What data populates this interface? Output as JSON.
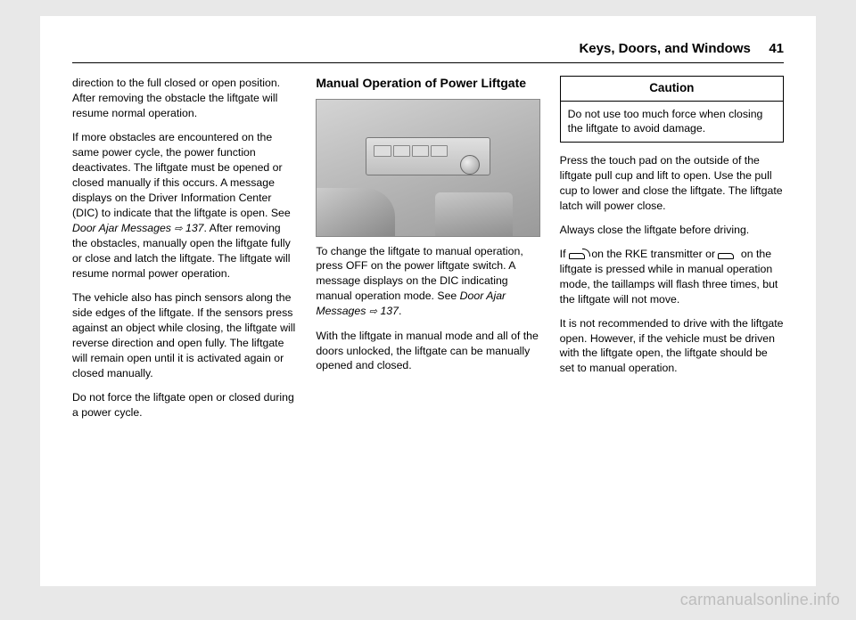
{
  "header": {
    "title": "Keys, Doors, and Windows",
    "page": "41"
  },
  "col1": {
    "p1": "direction to the full closed or open position. After removing the obstacle the liftgate will resume normal operation.",
    "p2a": "If more obstacles are encountered on the same power cycle, the power function deactivates. The liftgate must be opened or closed manually if this occurs. A message displays on the Driver Information Center (DIC) to indicate that the liftgate is open. See ",
    "p2_link": "Door Ajar Messages ",
    "p2_ref": "137",
    "p2b": ". After removing the obstacles, manually open the liftgate fully or close and latch the liftgate. The liftgate will resume normal power operation.",
    "p3": "The vehicle also has pinch sensors along the side edges of the liftgate. If the sensors press against an object while closing, the liftgate will reverse direction and open fully. The liftgate will remain open until it is activated again or closed manually.",
    "p4": "Do not force the liftgate open or closed during a power cycle."
  },
  "col2": {
    "heading": "Manual Operation of Power Liftgate",
    "p1a": "To change the liftgate to manual operation, press OFF on the power liftgate switch. A message displays on the DIC indicating manual operation mode. See ",
    "p1_link": "Door Ajar Messages ",
    "p1_ref": "137",
    "p1b": ".",
    "p2": "With the liftgate in manual mode and all of the doors unlocked, the liftgate can be manually opened and closed."
  },
  "col3": {
    "caution_title": "Caution",
    "caution_body": "Do not use too much force when closing the liftgate to avoid damage.",
    "p1": "Press the touch pad on the outside of the liftgate pull cup and lift to open. Use the pull cup to lower and close the liftgate. The liftgate latch will power close.",
    "p2": "Always close the liftgate before driving.",
    "p3a": "If ",
    "p3b": " on the RKE transmitter or ",
    "p3c": " on the liftgate is pressed while in manual operation mode, the taillamps will flash three times, but the liftgate will not move.",
    "p4": "It is not recommended to drive with the liftgate open. However, if the vehicle must be driven with the liftgate open, the liftgate should be set to manual operation."
  },
  "watermark": "carmanualsonline.info"
}
